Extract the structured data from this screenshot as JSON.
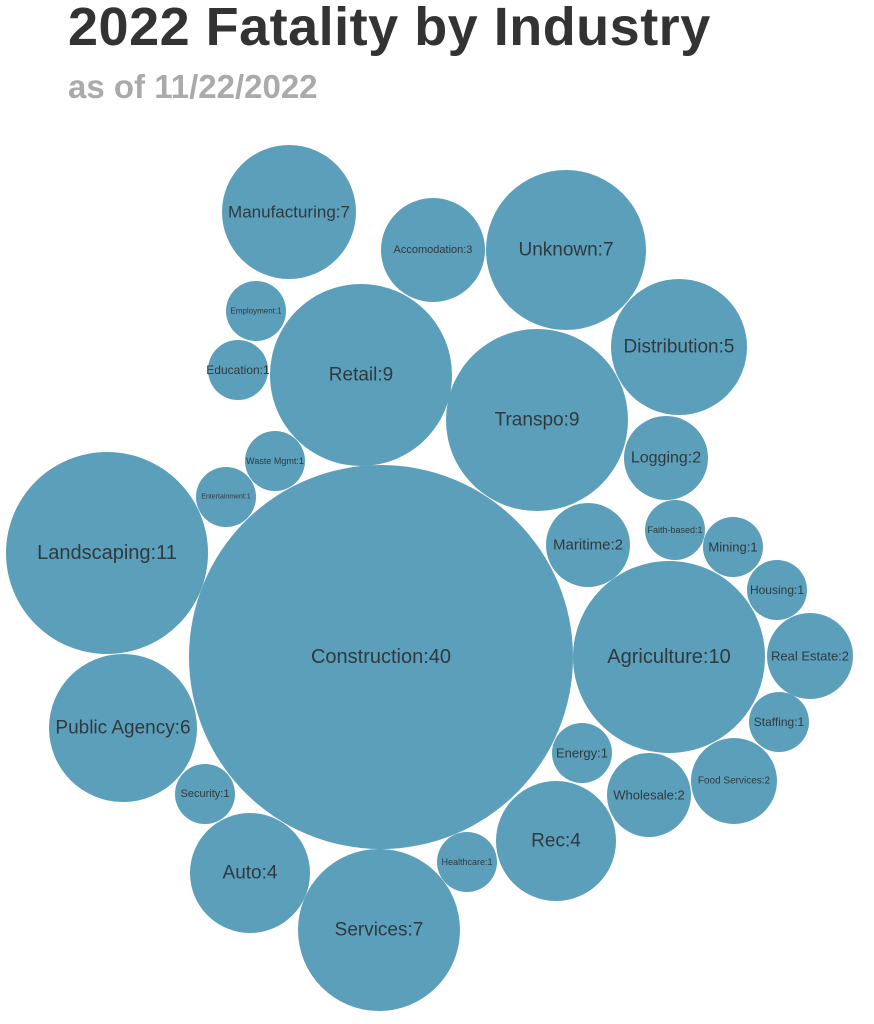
{
  "chart_data": {
    "type": "bubble",
    "title": "2022 Fatality by Industry",
    "subtitle": "as of 11/22/2022",
    "bubble_color": "#5b9fba",
    "label_format": "{name}:{value}",
    "items": [
      {
        "name": "Construction",
        "value": 40
      },
      {
        "name": "Landscaping",
        "value": 11
      },
      {
        "name": "Agriculture",
        "value": 10
      },
      {
        "name": "Retail",
        "value": 9
      },
      {
        "name": "Transpo",
        "value": 9
      },
      {
        "name": "Manufacturing",
        "value": 7
      },
      {
        "name": "Unknown",
        "value": 7
      },
      {
        "name": "Services",
        "value": 7
      },
      {
        "name": "Public Agency",
        "value": 6
      },
      {
        "name": "Distribution",
        "value": 5
      },
      {
        "name": "Rec",
        "value": 4
      },
      {
        "name": "Auto",
        "value": 4
      },
      {
        "name": "Accomodation",
        "value": 3
      },
      {
        "name": "Logging",
        "value": 2
      },
      {
        "name": "Maritime",
        "value": 2
      },
      {
        "name": "Real Estate",
        "value": 2
      },
      {
        "name": "Food Services",
        "value": 2
      },
      {
        "name": "Wholesale",
        "value": 2
      },
      {
        "name": "Employment",
        "value": 1
      },
      {
        "name": "Education",
        "value": 1
      },
      {
        "name": "Waste Mgmt",
        "value": 1
      },
      {
        "name": "Entertainment",
        "value": 1
      },
      {
        "name": "Faith-based",
        "value": 1
      },
      {
        "name": "Mining",
        "value": 1
      },
      {
        "name": "Housing",
        "value": 1
      },
      {
        "name": "Staffing",
        "value": 1
      },
      {
        "name": "Energy",
        "value": 1
      },
      {
        "name": "Security",
        "value": 1
      },
      {
        "name": "Healthcare",
        "value": 1
      }
    ]
  }
}
